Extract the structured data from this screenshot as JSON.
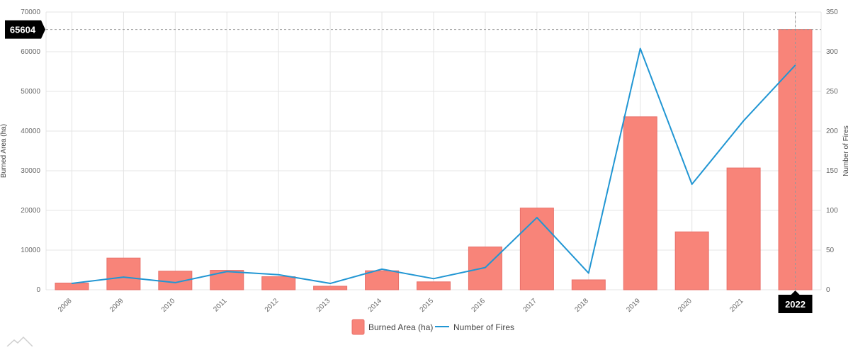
{
  "chart_data": {
    "type": "bar",
    "categories": [
      "2008",
      "2009",
      "2010",
      "2011",
      "2012",
      "2013",
      "2014",
      "2015",
      "2016",
      "2017",
      "2018",
      "2019",
      "2020",
      "2021",
      "2022"
    ],
    "series": [
      {
        "name": "Burned Area (ha)",
        "type": "bar",
        "axis": "left",
        "values": [
          1700,
          8000,
          4700,
          4900,
          3300,
          900,
          4800,
          2000,
          10800,
          20600,
          2500,
          43600,
          14600,
          30700,
          65604
        ]
      },
      {
        "name": "Number of Fires",
        "type": "line",
        "axis": "right",
        "values": [
          8,
          16,
          9,
          23,
          19,
          8,
          26,
          14,
          28,
          91,
          21,
          304,
          133,
          213,
          283
        ]
      }
    ],
    "ylabel": "Burned Area (ha)",
    "y2label": "Number of Fires",
    "ylim": [
      0,
      70000
    ],
    "y2lim": [
      0,
      350
    ],
    "yticks": [
      "0",
      "10000",
      "20000",
      "30000",
      "40000",
      "50000",
      "60000",
      "70000"
    ],
    "y2ticks": [
      "0",
      "50",
      "100",
      "150",
      "200",
      "250",
      "300",
      "350"
    ],
    "grid": true,
    "legend": "bottom-center",
    "crosshair": {
      "category": "2022",
      "value": 65604,
      "category_label": "2022",
      "value_label": "65604"
    },
    "colors": {
      "bar": "#f88479",
      "bar_stroke": "#e8706a",
      "line": "#2196d3",
      "grid": "#e4e4e4",
      "badge": "#000000"
    }
  },
  "legend_items": [
    {
      "label": "Burned Area (ha)",
      "icon": "bar-swatch-icon"
    },
    {
      "label": "Number of Fires",
      "icon": "line-swatch-icon"
    }
  ],
  "watermark_icon": "mountain-logo-icon"
}
